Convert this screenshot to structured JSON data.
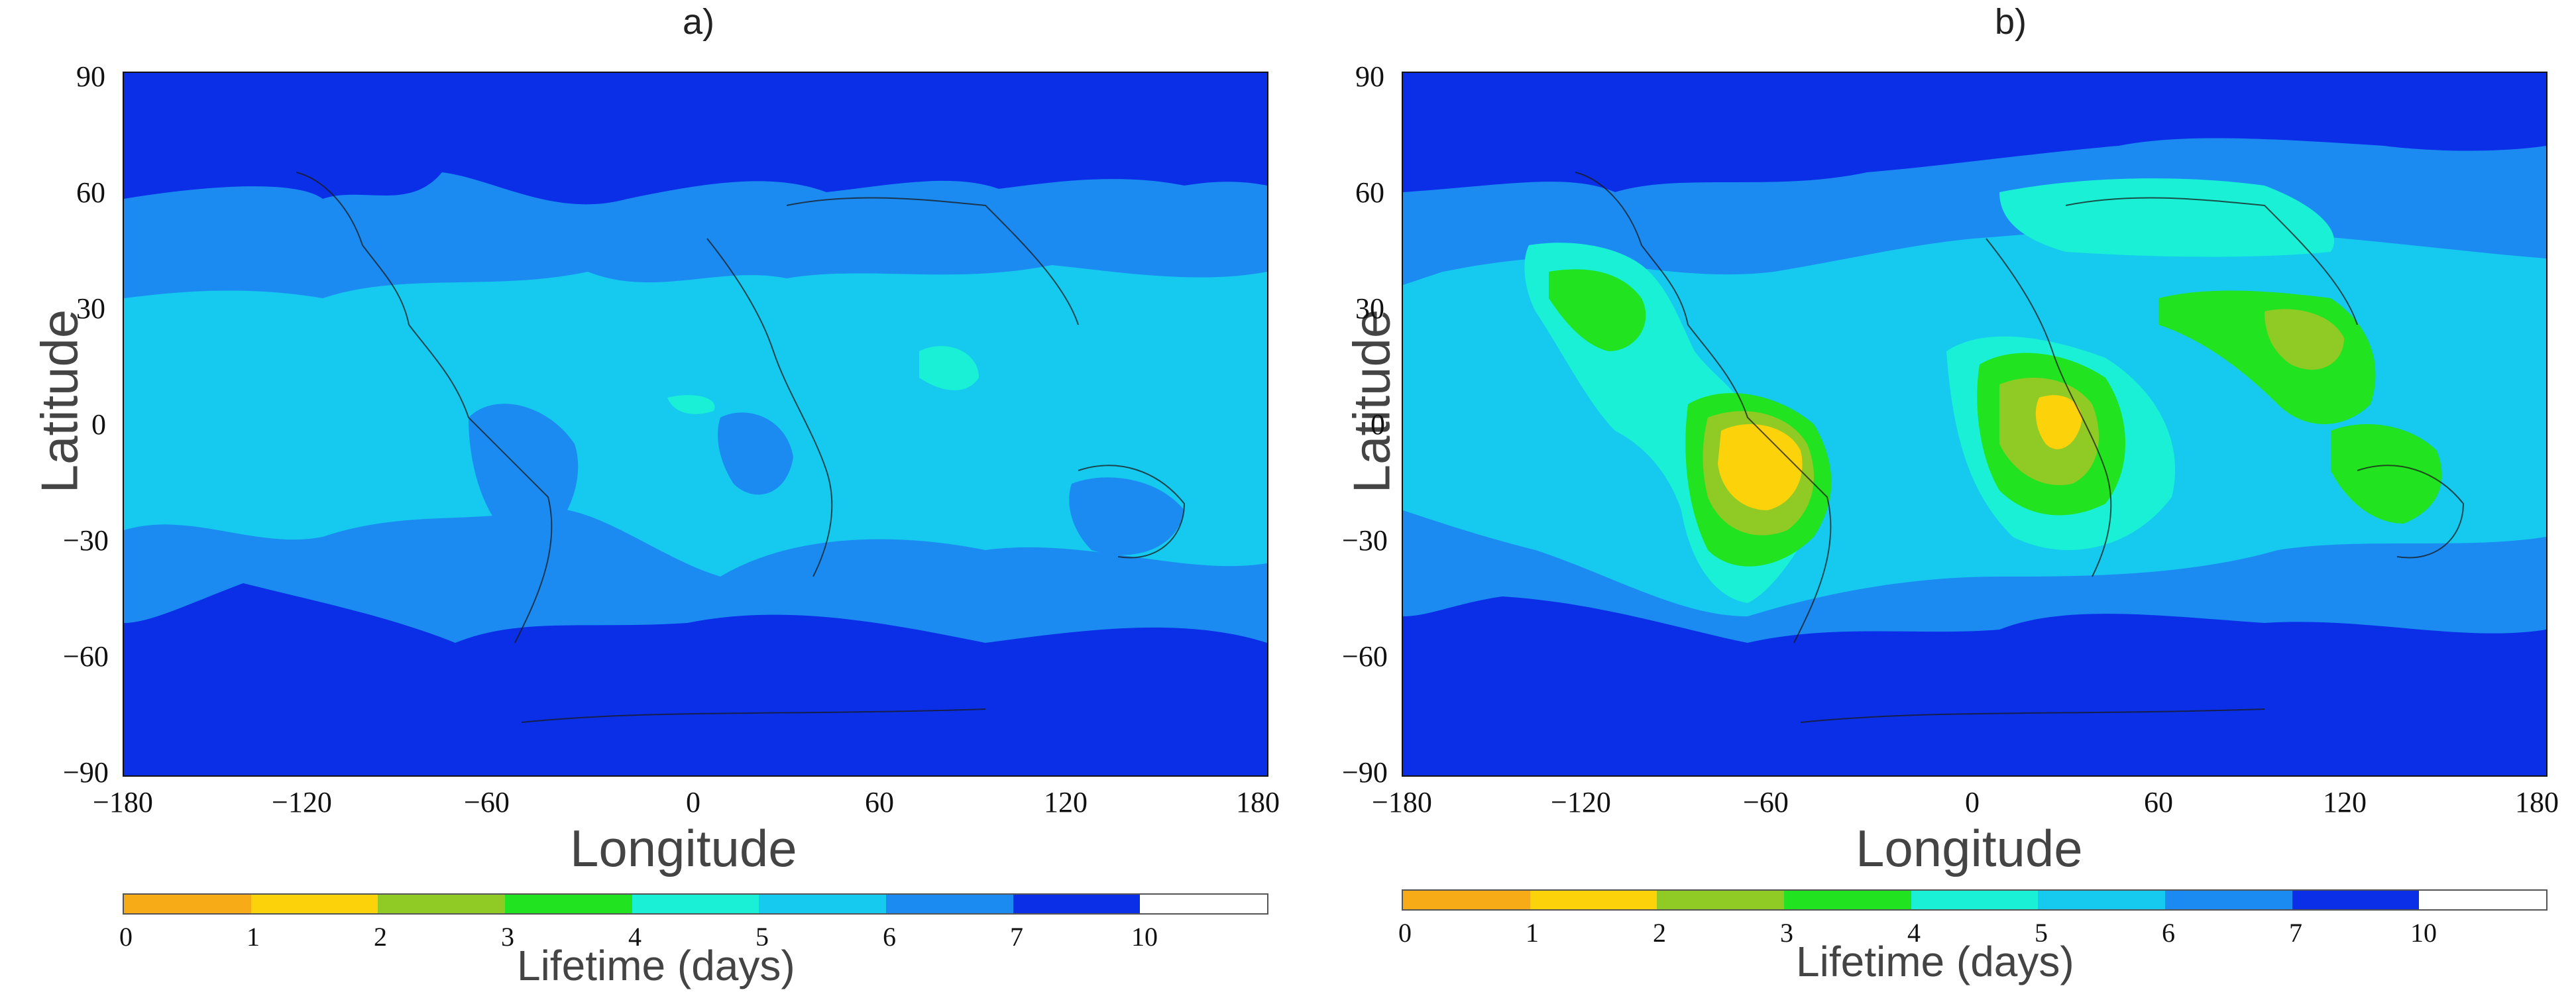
{
  "panels": [
    {
      "label": "a)",
      "ylabel": "Latitude",
      "xlabel": "Longitude"
    },
    {
      "label": "b)",
      "ylabel": "Latitude",
      "xlabel": "Longitude"
    }
  ],
  "axes": {
    "y_ticks": [
      "90",
      "60",
      "30",
      "0",
      "−30",
      "−60",
      "−90"
    ],
    "x_ticks": [
      "−180",
      "−120",
      "−60",
      "0",
      "60",
      "120",
      "180"
    ]
  },
  "colorbar": {
    "title": "Lifetime (days)",
    "ticks": [
      "0",
      "1",
      "2",
      "3",
      "4",
      "5",
      "6",
      "7",
      "10"
    ],
    "colors": [
      "#f6ab17",
      "#fcd20a",
      "#8fcb24",
      "#22e31f",
      "#19f0d6",
      "#16c9ee",
      "#1b8bf2",
      "#0a2fe6",
      "#ffffff"
    ]
  }
}
